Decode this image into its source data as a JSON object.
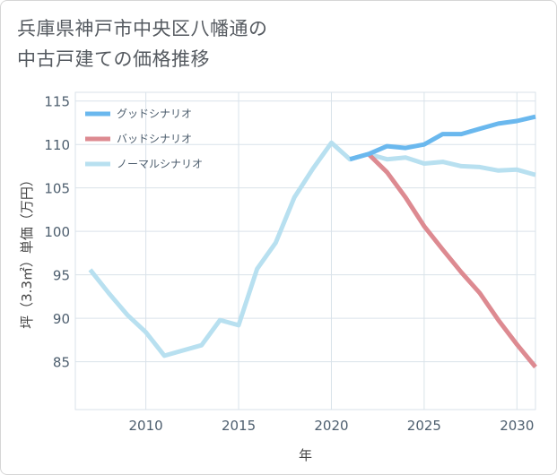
{
  "title_line1": "兵庫県神戸市中央区八幡通の",
  "title_line2": "中古戸建ての価格推移",
  "chart_data": {
    "type": "line",
    "xlabel": "年",
    "ylabel": "坪（3.3㎡）単価（万円）",
    "xlim": [
      2006.2,
      2031
    ],
    "ylim": [
      79.5,
      116
    ],
    "xticks": [
      2010,
      2015,
      2020,
      2025,
      2030
    ],
    "yticks": [
      85,
      90,
      95,
      100,
      105,
      110,
      115
    ],
    "grid": true,
    "legend_position": "top-left",
    "series": [
      {
        "name": "グッドシナリオ",
        "color": "#6ab8ee",
        "x": [
          2021,
          2022,
          2023,
          2024,
          2025,
          2026,
          2027,
          2028,
          2029,
          2030,
          2031
        ],
        "y": [
          108.3,
          108.9,
          109.8,
          109.6,
          110.0,
          111.2,
          111.2,
          111.8,
          112.4,
          112.7,
          113.2
        ]
      },
      {
        "name": "バッドシナリオ",
        "color": "#dd8a91",
        "x": [
          2022,
          2023,
          2024,
          2025,
          2026,
          2027,
          2028,
          2029,
          2030,
          2031
        ],
        "y": [
          108.9,
          106.8,
          103.9,
          100.6,
          97.9,
          95.3,
          92.9,
          89.8,
          87.0,
          84.4
        ]
      },
      {
        "name": "ノーマルシナリオ",
        "color": "#b8e0f0",
        "x": [
          2007,
          2008,
          2009,
          2010,
          2011,
          2012,
          2013,
          2014,
          2015,
          2016,
          2017,
          2018,
          2019,
          2020,
          2021,
          2022,
          2023,
          2024,
          2025,
          2026,
          2027,
          2028,
          2029,
          2030,
          2031
        ],
        "y": [
          95.6,
          92.9,
          90.4,
          88.4,
          85.7,
          86.3,
          86.9,
          89.8,
          89.2,
          95.7,
          98.7,
          103.9,
          107.2,
          110.2,
          108.3,
          108.9,
          108.3,
          108.5,
          107.8,
          108.0,
          107.5,
          107.4,
          107.0,
          107.1,
          106.5
        ]
      }
    ]
  }
}
